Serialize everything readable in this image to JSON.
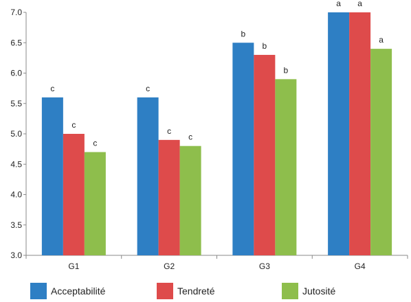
{
  "chart_data": {
    "type": "bar",
    "categories": [
      "G1",
      "G2",
      "G3",
      "G4"
    ],
    "series": [
      {
        "name": "Acceptabilité",
        "color": "#2E7FC4",
        "values": [
          5.6,
          5.6,
          6.5,
          7.0
        ],
        "labels": [
          "c",
          "c",
          "b",
          "a"
        ]
      },
      {
        "name": "Tendreté",
        "color": "#DE4B4B",
        "values": [
          5.0,
          4.9,
          6.3,
          7.0
        ],
        "labels": [
          "c",
          "c",
          "b",
          "a"
        ]
      },
      {
        "name": "Jutosité",
        "color": "#8EBE4C",
        "values": [
          4.7,
          4.8,
          5.9,
          6.4
        ],
        "labels": [
          "c",
          "c",
          "b",
          "a"
        ]
      }
    ],
    "yticks": [
      "3.0",
      "3.5",
      "4.0",
      "4.5",
      "5.0",
      "5.5",
      "6.0",
      "6.5",
      "7.0"
    ],
    "ylim": [
      3.0,
      7.0
    ],
    "grid": false,
    "legend_position": "bottom"
  }
}
